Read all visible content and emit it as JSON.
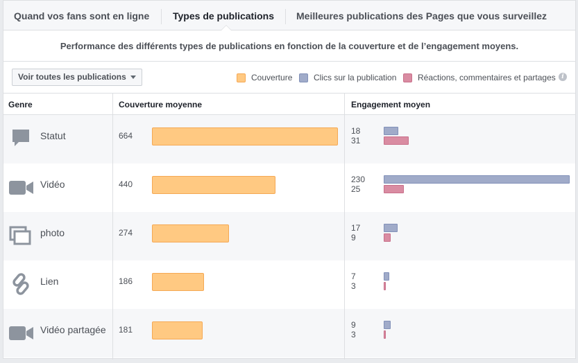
{
  "tabs": [
    {
      "label": "Quand vos fans sont en ligne",
      "active": false
    },
    {
      "label": "Types de publications",
      "active": true
    },
    {
      "label": "Meilleures publications des Pages que vous surveillez",
      "active": false
    }
  ],
  "subtitle": "Performance des différents types de publications en fonction de la couverture et de l’engagement moyens.",
  "filter_button": "Voir toutes les publications",
  "legend": [
    {
      "label": "Couverture",
      "color": "#ffc982"
    },
    {
      "label": "Clics sur la publication",
      "color": "#a0abc9"
    },
    {
      "label": "Réactions, commentaires et partages",
      "color": "#d98ca2"
    }
  ],
  "table": {
    "headers": {
      "genre": "Genre",
      "reach": "Couverture moyenne",
      "engagement": "Engagement moyen"
    },
    "rows": [
      {
        "icon": "speech-bubble-icon",
        "genre": "Statut",
        "reach": "664",
        "clicks": "18",
        "reactions": "31"
      },
      {
        "icon": "video-camera-icon",
        "genre": "Vidéo",
        "reach": "440",
        "clicks": "230",
        "reactions": "25"
      },
      {
        "icon": "photo-icon",
        "genre": "photo",
        "reach": "274",
        "clicks": "17",
        "reactions": "9"
      },
      {
        "icon": "link-icon",
        "genre": "Lien",
        "reach": "186",
        "clicks": "7",
        "reactions": "3"
      },
      {
        "icon": "video-camera-icon",
        "genre": "Vidéo partagée",
        "reach": "181",
        "clicks": "9",
        "reactions": "3"
      }
    ]
  }
}
